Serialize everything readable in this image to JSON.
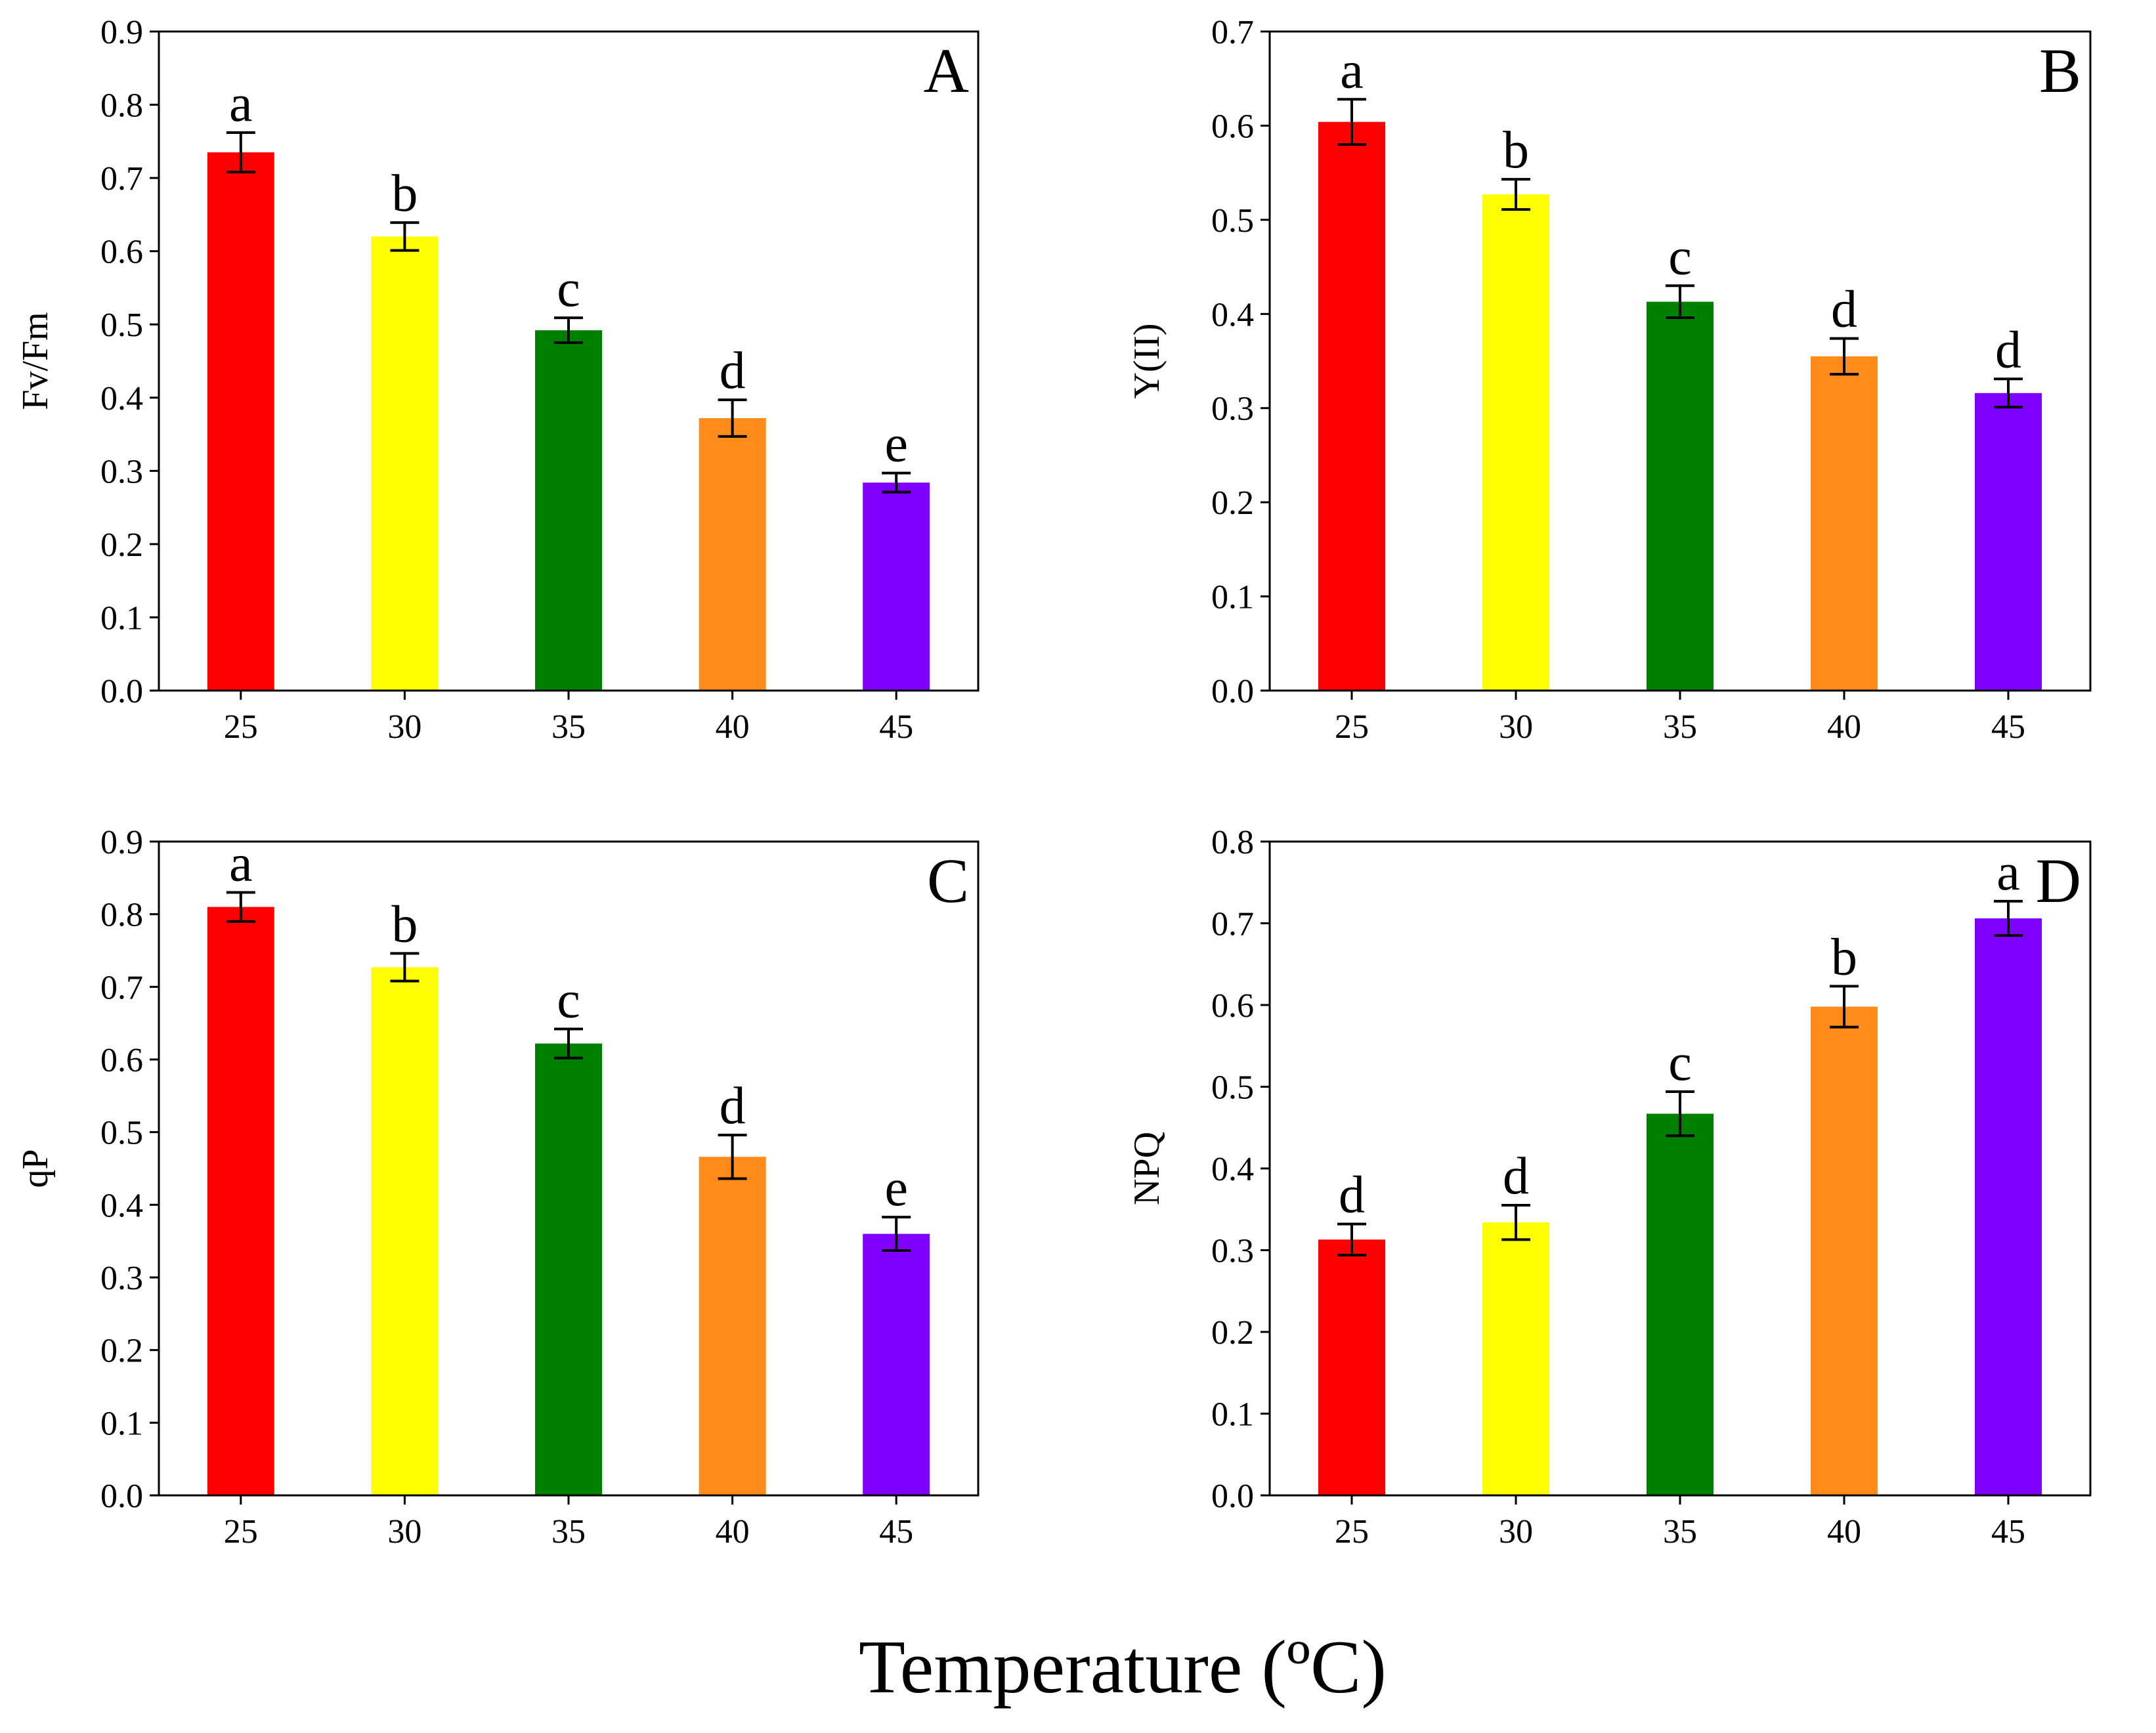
{
  "common_xlabel": "Temperature (ºC)",
  "colors": [
    "#ff0000",
    "#ffff00",
    "#008000",
    "#ff8c1a",
    "#8000ff"
  ],
  "chart_data": [
    {
      "panel": "A",
      "type": "bar",
      "categories": [
        "25",
        "30",
        "35",
        "40",
        "45"
      ],
      "values": [
        0.735,
        0.62,
        0.492,
        0.372,
        0.284
      ],
      "errors": [
        0.027,
        0.019,
        0.017,
        0.025,
        0.013
      ],
      "significance": [
        "a",
        "b",
        "c",
        "d",
        "e"
      ],
      "ylabel": "Fv/Fm",
      "ylim": [
        0,
        0.9
      ],
      "yticks": [
        "0.0",
        "0.1",
        "0.2",
        "0.3",
        "0.4",
        "0.5",
        "0.6",
        "0.7",
        "0.8",
        "0.9"
      ]
    },
    {
      "panel": "B",
      "type": "bar",
      "categories": [
        "25",
        "30",
        "35",
        "40",
        "45"
      ],
      "values": [
        0.604,
        0.527,
        0.413,
        0.355,
        0.316
      ],
      "errors": [
        0.024,
        0.016,
        0.017,
        0.019,
        0.015
      ],
      "significance": [
        "a",
        "b",
        "c",
        "d",
        "d"
      ],
      "ylabel": "Y(II)",
      "ylim": [
        0,
        0.7
      ],
      "yticks": [
        "0.0",
        "0.1",
        "0.2",
        "0.3",
        "0.4",
        "0.5",
        "0.6",
        "0.7"
      ]
    },
    {
      "panel": "C",
      "type": "bar",
      "categories": [
        "25",
        "30",
        "35",
        "40",
        "45"
      ],
      "values": [
        0.81,
        0.727,
        0.622,
        0.466,
        0.36
      ],
      "errors": [
        0.02,
        0.019,
        0.02,
        0.03,
        0.023
      ],
      "significance": [
        "a",
        "b",
        "c",
        "d",
        "e"
      ],
      "ylabel": "qP",
      "ylim": [
        0,
        0.9
      ],
      "yticks": [
        "0.0",
        "0.1",
        "0.2",
        "0.3",
        "0.4",
        "0.5",
        "0.6",
        "0.7",
        "0.8",
        "0.9"
      ]
    },
    {
      "panel": "D",
      "type": "bar",
      "categories": [
        "25",
        "30",
        "35",
        "40",
        "45"
      ],
      "values": [
        0.313,
        0.334,
        0.467,
        0.598,
        0.706
      ],
      "errors": [
        0.019,
        0.021,
        0.027,
        0.025,
        0.021
      ],
      "significance": [
        "d",
        "d",
        "c",
        "b",
        "a"
      ],
      "ylabel": "NPQ",
      "ylim": [
        0,
        0.8
      ],
      "yticks": [
        "0.0",
        "0.1",
        "0.2",
        "0.3",
        "0.4",
        "0.5",
        "0.6",
        "0.7",
        "0.8"
      ]
    }
  ]
}
